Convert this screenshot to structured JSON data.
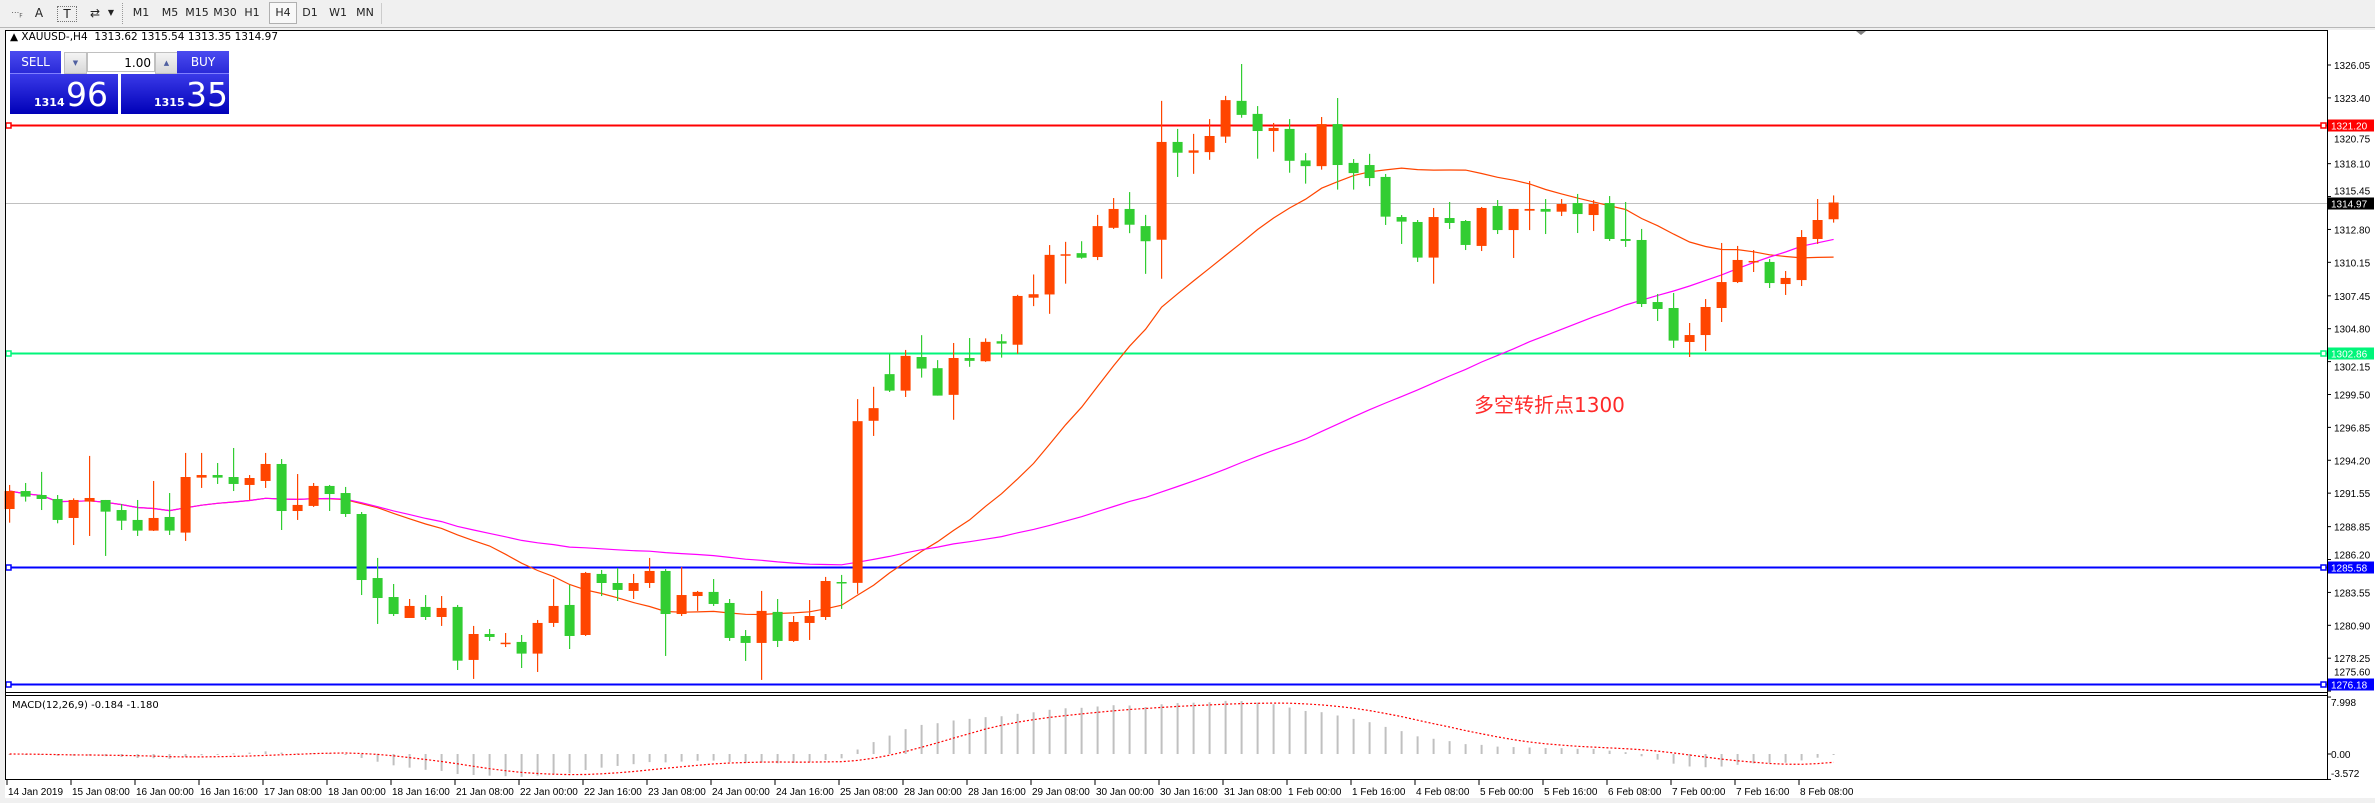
{
  "toolbar": {
    "tools": [
      {
        "icon": "period-grid-icon"
      },
      {
        "label": "A",
        "icon": "text-icon"
      },
      {
        "label": "T",
        "icon": "text-label-icon"
      },
      {
        "icon": "arrows-icon"
      }
    ],
    "timeframes": [
      "M1",
      "M5",
      "M15",
      "M30",
      "H1",
      "H4",
      "D1",
      "W1",
      "MN"
    ],
    "active_timeframe": "H4"
  },
  "chart_header": {
    "symbol": "XAUUSD-,H4",
    "ohlc": "1313.62 1315.54 1313.35 1314.97"
  },
  "one_click": {
    "sell_label": "SELL",
    "buy_label": "BUY",
    "lot": "1.00",
    "sell_price_small": "1314",
    "sell_price_big": "96",
    "buy_price_small": "1315",
    "buy_price_big": "35",
    "color": "#2a2ad8"
  },
  "annotation": "多空转折点1300",
  "macd_label": "MACD(12,26,9) -0.184 -1.180",
  "chart_data": {
    "type": "candlestick",
    "symbol": "XAUUSD-",
    "timeframe": "H4",
    "bull_color": "#FF4500",
    "bear_color": "#32CD32",
    "ylim": [
      1275.6,
      1326.05
    ],
    "y_ticks": [
      "1326.05",
      "1323.40",
      "1320.75",
      "1318.10",
      "1315.45",
      "1312.80",
      "1310.15",
      "1307.45",
      "1304.80",
      "1302.15",
      "1299.50",
      "1296.85",
      "1294.20",
      "1291.55",
      "1288.85",
      "1286.20",
      "1283.55",
      "1280.90",
      "1278.25",
      "1275.60"
    ],
    "x_ticks": [
      "14 Jan 2019",
      "15 Jan 08:00",
      "16 Jan 00:00",
      "16 Jan 16:00",
      "17 Jan 08:00",
      "18 Jan 00:00",
      "18 Jan 16:00",
      "21 Jan 08:00",
      "22 Jan 00:00",
      "22 Jan 16:00",
      "23 Jan 08:00",
      "24 Jan 00:00",
      "24 Jan 16:00",
      "25 Jan 08:00",
      "28 Jan 00:00",
      "28 Jan 16:00",
      "29 Jan 08:00",
      "30 Jan 00:00",
      "30 Jan 16:00",
      "31 Jan 08:00",
      "1 Feb 00:00",
      "1 Feb 16:00",
      "4 Feb 08:00",
      "5 Feb 00:00",
      "5 Feb 16:00",
      "6 Feb 08:00",
      "7 Feb 00:00",
      "7 Feb 16:00",
      "8 Feb 08:00"
    ],
    "ohlc": [
      [
        1290.27,
        1292.21,
        1289.17,
        1291.72
      ],
      [
        1291.72,
        1292.37,
        1290.87,
        1291.27
      ],
      [
        1291.4,
        1293.26,
        1290.19,
        1291.08
      ],
      [
        1291.08,
        1291.4,
        1289.12,
        1289.39
      ],
      [
        1289.55,
        1291.13,
        1287.37,
        1291.0
      ],
      [
        1290.87,
        1294.55,
        1288.1,
        1291.16
      ],
      [
        1291.0,
        1291.0,
        1286.49,
        1290.06
      ],
      [
        1290.19,
        1290.68,
        1288.58,
        1289.33
      ],
      [
        1289.39,
        1291.0,
        1288.1,
        1288.53
      ],
      [
        1288.53,
        1292.53,
        1288.5,
        1289.55
      ],
      [
        1289.63,
        1291.56,
        1288.18,
        1288.53
      ],
      [
        1288.37,
        1294.79,
        1287.7,
        1292.85
      ],
      [
        1292.8,
        1294.79,
        1291.97,
        1293.01
      ],
      [
        1293.01,
        1293.98,
        1292.29,
        1292.8
      ],
      [
        1292.85,
        1295.19,
        1291.72,
        1292.29
      ],
      [
        1292.21,
        1293.01,
        1291.0,
        1292.77
      ],
      [
        1292.53,
        1294.79,
        1291.97,
        1293.9
      ],
      [
        1293.9,
        1294.3,
        1288.58,
        1290.11
      ],
      [
        1290.11,
        1293.09,
        1289.39,
        1290.6
      ],
      [
        1290.52,
        1292.37,
        1290.44,
        1292.13
      ],
      [
        1292.13,
        1292.21,
        1290.11,
        1291.48
      ],
      [
        1291.56,
        1292.05,
        1289.63,
        1289.87
      ],
      [
        1289.87,
        1290.03,
        1283.34,
        1284.55
      ],
      [
        1284.71,
        1286.33,
        1281.01,
        1283.1
      ],
      [
        1283.18,
        1284.23,
        1281.65,
        1281.81
      ],
      [
        1281.49,
        1283.02,
        1281.49,
        1282.46
      ],
      [
        1282.38,
        1283.34,
        1281.33,
        1281.57
      ],
      [
        1281.57,
        1283.26,
        1280.85,
        1282.3
      ],
      [
        1282.38,
        1282.54,
        1277.3,
        1278.05
      ],
      [
        1278.11,
        1280.85,
        1276.58,
        1280.2
      ],
      [
        1280.2,
        1280.6,
        1279.64,
        1279.96
      ],
      [
        1279.46,
        1280.28,
        1279.15,
        1279.5
      ],
      [
        1279.56,
        1280.12,
        1277.46,
        1278.62
      ],
      [
        1278.62,
        1281.33,
        1277.14,
        1281.09
      ],
      [
        1281.09,
        1284.63,
        1280.77,
        1282.46
      ],
      [
        1282.54,
        1284.15,
        1278.99,
        1280.04
      ],
      [
        1280.12,
        1285.2,
        1280.04,
        1285.12
      ],
      [
        1285.04,
        1285.36,
        1283.26,
        1284.31
      ],
      [
        1284.31,
        1285.52,
        1282.86,
        1283.75
      ],
      [
        1283.67,
        1285.04,
        1283.02,
        1284.31
      ],
      [
        1284.31,
        1286.33,
        1283.91,
        1285.28
      ],
      [
        1285.28,
        1285.44,
        1278.43,
        1281.81
      ],
      [
        1281.81,
        1285.6,
        1281.65,
        1283.34
      ],
      [
        1283.26,
        1283.67,
        1282.06,
        1283.59
      ],
      [
        1283.59,
        1284.63,
        1282.46,
        1282.62
      ],
      [
        1282.7,
        1283.02,
        1279.64,
        1279.88
      ],
      [
        1280.04,
        1280.52,
        1278.03,
        1279.48
      ],
      [
        1279.48,
        1283.67,
        1276.5,
        1282.06
      ],
      [
        1281.98,
        1283.02,
        1279.15,
        1279.64
      ],
      [
        1279.64,
        1281.65,
        1279.56,
        1281.17
      ],
      [
        1281.09,
        1282.94,
        1279.72,
        1281.65
      ],
      [
        1281.57,
        1284.8,
        1281.33,
        1284.47
      ],
      [
        1284.39,
        1284.96,
        1282.22,
        1284.35
      ],
      [
        1284.32,
        1299.13,
        1283.44,
        1297.35
      ],
      [
        1297.38,
        1300.12,
        1296.16,
        1298.4
      ],
      [
        1301.14,
        1302.78,
        1299.7,
        1299.81
      ],
      [
        1299.81,
        1303.09,
        1299.3,
        1302.61
      ],
      [
        1302.52,
        1304.28,
        1300.86,
        1301.59
      ],
      [
        1301.62,
        1302.27,
        1299.41,
        1299.41
      ],
      [
        1299.47,
        1303.65,
        1297.46,
        1302.44
      ],
      [
        1302.44,
        1304.05,
        1301.73,
        1302.21
      ],
      [
        1302.18,
        1304.02,
        1302.13,
        1303.74
      ],
      [
        1303.79,
        1304.36,
        1302.47,
        1303.6
      ],
      [
        1303.51,
        1307.53,
        1302.78,
        1307.44
      ],
      [
        1307.3,
        1309.17,
        1306.62,
        1307.58
      ],
      [
        1307.56,
        1311.54,
        1306.0,
        1310.75
      ],
      [
        1310.7,
        1311.8,
        1308.43,
        1310.8
      ],
      [
        1310.89,
        1311.85,
        1310.44,
        1310.52
      ],
      [
        1310.58,
        1313.97,
        1310.33,
        1313.07
      ],
      [
        1312.93,
        1315.33,
        1312.84,
        1314.45
      ],
      [
        1314.45,
        1315.81,
        1312.5,
        1313.18
      ],
      [
        1313.07,
        1313.97,
        1309.22,
        1311.85
      ],
      [
        1311.97,
        1323.16,
        1308.83,
        1319.85
      ],
      [
        1319.85,
        1320.9,
        1317.03,
        1318.98
      ],
      [
        1318.98,
        1320.5,
        1317.28,
        1319.17
      ],
      [
        1319.03,
        1321.69,
        1318.41,
        1320.33
      ],
      [
        1320.28,
        1323.56,
        1319.77,
        1323.22
      ],
      [
        1323.16,
        1326.13,
        1321.8,
        1322.03
      ],
      [
        1322.11,
        1322.74,
        1318.5,
        1320.73
      ],
      [
        1320.73,
        1321.38,
        1319.06,
        1320.98
      ],
      [
        1320.9,
        1321.69,
        1317.37,
        1318.33
      ],
      [
        1318.36,
        1318.95,
        1316.49,
        1317.9
      ],
      [
        1317.9,
        1321.86,
        1317.62,
        1321.29
      ],
      [
        1321.29,
        1323.39,
        1316.01,
        1317.99
      ],
      [
        1318.16,
        1318.47,
        1316.01,
        1317.34
      ],
      [
        1317.99,
        1318.89,
        1316.29,
        1316.94
      ],
      [
        1317.03,
        1317.27,
        1313.16,
        1313.83
      ],
      [
        1313.8,
        1313.96,
        1311.63,
        1313.43
      ],
      [
        1313.4,
        1313.56,
        1310.18,
        1310.53
      ],
      [
        1310.53,
        1314.53,
        1308.43,
        1313.8
      ],
      [
        1313.72,
        1315.01,
        1312.84,
        1313.32
      ],
      [
        1313.48,
        1313.56,
        1311.14,
        1311.55
      ],
      [
        1311.47,
        1314.61,
        1311.06,
        1314.53
      ],
      [
        1314.69,
        1315.17,
        1312.43,
        1312.75
      ],
      [
        1312.75,
        1314.45,
        1310.5,
        1314.45
      ],
      [
        1314.31,
        1316.7,
        1312.75,
        1314.45
      ],
      [
        1314.45,
        1315.25,
        1312.43,
        1314.23
      ],
      [
        1314.23,
        1315.25,
        1313.88,
        1314.85
      ],
      [
        1314.93,
        1315.66,
        1312.51,
        1314.04
      ],
      [
        1313.96,
        1315.17,
        1312.67,
        1314.85
      ],
      [
        1314.93,
        1315.49,
        1311.87,
        1312.03
      ],
      [
        1312.03,
        1315.01,
        1311.39,
        1311.87
      ],
      [
        1311.95,
        1312.84,
        1306.55,
        1306.79
      ],
      [
        1306.95,
        1307.6,
        1305.42,
        1306.39
      ],
      [
        1306.47,
        1307.68,
        1303.25,
        1303.84
      ],
      [
        1303.73,
        1305.26,
        1302.52,
        1304.29
      ],
      [
        1304.29,
        1307.19,
        1303.0,
        1306.55
      ],
      [
        1306.47,
        1311.71,
        1305.34,
        1308.56
      ],
      [
        1308.56,
        1311.47,
        1308.48,
        1310.34
      ],
      [
        1310.2,
        1311.14,
        1309.37,
        1310.26
      ],
      [
        1310.18,
        1310.42,
        1308.08,
        1308.48
      ],
      [
        1308.4,
        1309.45,
        1307.52,
        1308.89
      ],
      [
        1308.72,
        1312.75,
        1308.24,
        1312.19
      ],
      [
        1312.03,
        1315.25,
        1311.63,
        1313.56
      ],
      [
        1313.62,
        1315.54,
        1313.35,
        1314.97
      ]
    ],
    "moving_averages": [
      {
        "color": "#FF4500"
      },
      {
        "color": "#FF00FF"
      }
    ],
    "horizontal_lines": [
      {
        "price": 1321.2,
        "label": "1321.20",
        "color": "#FF0000",
        "thick": true
      },
      {
        "price": 1314.97,
        "label": "1314.97",
        "color": "#C0C0C0",
        "label_bg": "#000000",
        "thick": false
      },
      {
        "price": 1302.86,
        "label": "1302.86",
        "color": "#00F57A",
        "thick": true
      },
      {
        "price": 1285.58,
        "label": "1285.58",
        "color": "#0000FF",
        "thick": true
      },
      {
        "price": 1276.18,
        "label": "1276.18",
        "color": "#0000FF",
        "thick": true
      }
    ],
    "macd": {
      "params": [
        12,
        26,
        9
      ],
      "main": -0.184,
      "signal": -1.18,
      "ylim": [
        -3.572,
        7.998
      ],
      "y_ticks": [
        "7.998",
        "0.00",
        "-3.572"
      ],
      "histogram_color": "#C0C0C0",
      "signal_color": "#FF0000"
    }
  }
}
